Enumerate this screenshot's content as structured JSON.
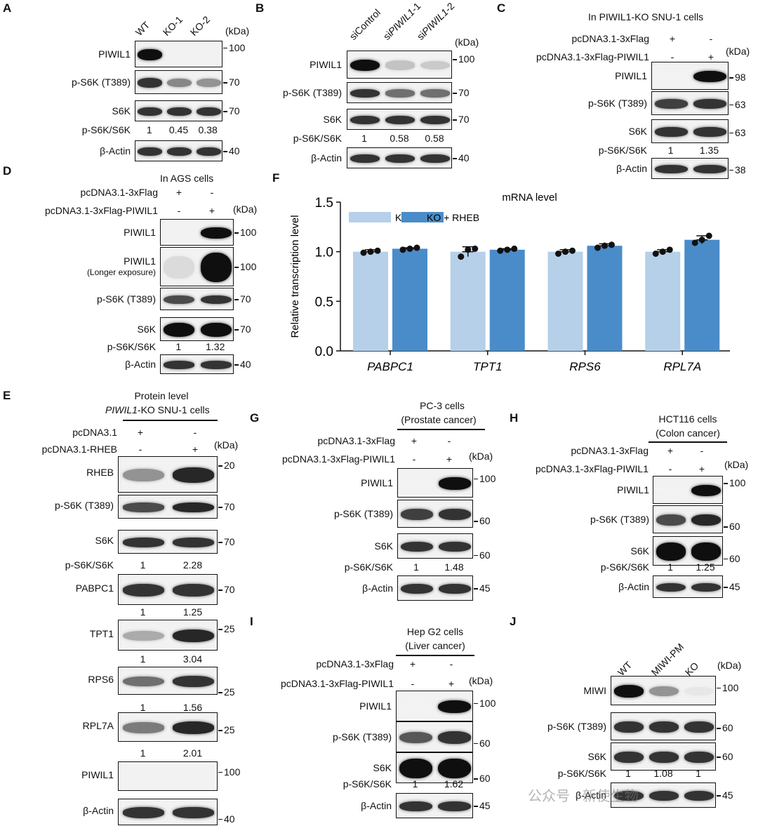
{
  "panels": {
    "A": {
      "label": "A",
      "lanes": [
        "WT",
        "KO-1",
        "KO-2"
      ],
      "kda": "(kDa)",
      "rows": [
        {
          "name": "PIWIL1",
          "marker": "100"
        },
        {
          "name": "p-S6K (T389)",
          "marker": "70"
        },
        {
          "name": "S6K",
          "marker": "70"
        },
        {
          "name": "β-Actin",
          "marker": "40"
        }
      ],
      "ratio_label": "p-S6K/S6K",
      "ratios": [
        "1",
        "0.45",
        "0.38"
      ]
    },
    "B": {
      "label": "B",
      "lanes": [
        "siControl",
        "siPIWIL1-1",
        "siPIWIL1-2"
      ],
      "kda": "(kDa)",
      "rows": [
        {
          "name": "PIWIL1",
          "marker": "100"
        },
        {
          "name": "p-S6K (T389)",
          "marker": "70"
        },
        {
          "name": "S6K",
          "marker": "70"
        },
        {
          "name": "β-Actin",
          "marker": "40"
        }
      ],
      "ratio_label": "p-S6K/S6K",
      "ratios": [
        "1",
        "0.58",
        "0.58"
      ]
    },
    "C": {
      "label": "C",
      "title": "In PIWIL1-KO SNU-1 cells",
      "conditions": [
        {
          "name": "pcDNA3.1-3xFlag",
          "signs": [
            "+",
            "-"
          ]
        },
        {
          "name": "pcDNA3.1-3xFlag-PIWIL1",
          "signs": [
            "-",
            "+"
          ]
        }
      ],
      "kda": "(kDa)",
      "rows": [
        {
          "name": "PIWIL1",
          "marker": "98"
        },
        {
          "name": "p-S6K (T389)",
          "marker": "63"
        },
        {
          "name": "S6K",
          "marker": "63"
        },
        {
          "name": "β-Actin",
          "marker": "38"
        }
      ],
      "ratio_label": "p-S6K/S6K",
      "ratios": [
        "1",
        "1.35"
      ]
    },
    "D": {
      "label": "D",
      "title": "In AGS cells",
      "conditions": [
        {
          "name": "pcDNA3.1-3xFlag",
          "signs": [
            "+",
            "-"
          ]
        },
        {
          "name": "pcDNA3.1-3xFlag-PIWIL1",
          "signs": [
            "-",
            "+"
          ]
        }
      ],
      "kda": "(kDa)",
      "rows": [
        {
          "name": "PIWIL1",
          "marker": "100"
        },
        {
          "name": "PIWIL1",
          "sub": "(Longer exposure)",
          "marker": "100"
        },
        {
          "name": "p-S6K (T389)",
          "marker": "70"
        },
        {
          "name": "S6K",
          "marker": "70"
        },
        {
          "name": "β-Actin",
          "marker": "40"
        }
      ],
      "ratio_label": "p-S6K/S6K",
      "ratios": [
        "1",
        "1.32"
      ]
    },
    "E": {
      "label": "E",
      "title1": "Protein level",
      "title2": "PIWIL1-KO SNU-1 cells",
      "conditions": [
        {
          "name": "pcDNA3.1",
          "signs": [
            "+",
            "-"
          ]
        },
        {
          "name": "pcDNA3.1-RHEB",
          "signs": [
            "-",
            "+"
          ]
        }
      ],
      "kda": "(kDa)",
      "rows": [
        {
          "name": "RHEB",
          "marker": "20"
        },
        {
          "name": "p-S6K (T389)",
          "marker": "70"
        },
        {
          "name": "S6K",
          "marker": "70"
        },
        {
          "name": "PABPC1",
          "marker": "70"
        },
        {
          "name": "TPT1",
          "marker": "25"
        },
        {
          "name": "RPS6",
          "marker": "25"
        },
        {
          "name": "RPL7A",
          "marker": "25"
        },
        {
          "name": "PIWIL1",
          "marker": "100"
        },
        {
          "name": "β-Actin",
          "marker": "40"
        }
      ],
      "ratio_label": "p-S6K/S6K",
      "ratios": [
        "1",
        "2.28"
      ],
      "quant": [
        [
          "1",
          "1.25"
        ],
        [
          "1",
          "3.04"
        ],
        [
          "1",
          "1.56"
        ],
        [
          "1",
          "2.01"
        ]
      ]
    },
    "F": {
      "label": "F"
    },
    "G": {
      "label": "G",
      "title1": "PC-3 cells",
      "title2": "(Prostate cancer)",
      "conditions": [
        {
          "name": "pcDNA3.1-3xFlag",
          "signs": [
            "+",
            "-"
          ]
        },
        {
          "name": "pcDNA3.1-3xFlag-PIWIL1",
          "signs": [
            "-",
            "+"
          ]
        }
      ],
      "kda": "(kDa)",
      "rows": [
        {
          "name": "PIWIL1",
          "marker": "100"
        },
        {
          "name": "p-S6K (T389)",
          "marker": "60"
        },
        {
          "name": "S6K",
          "marker": "60"
        },
        {
          "name": "β-Actin",
          "marker": "45"
        }
      ],
      "ratio_label": "p-S6K/S6K",
      "ratios": [
        "1",
        "1.48"
      ]
    },
    "H": {
      "label": "H",
      "title1": "HCT116 cells",
      "title2": "(Colon cancer)",
      "conditions": [
        {
          "name": "pcDNA3.1-3xFlag",
          "signs": [
            "+",
            "-"
          ]
        },
        {
          "name": "pcDNA3.1-3xFlag-PIWIL1",
          "signs": [
            "-",
            "+"
          ]
        }
      ],
      "kda": "(kDa)",
      "rows": [
        {
          "name": "PIWIL1",
          "marker": "100"
        },
        {
          "name": "p-S6K (T389)",
          "marker": "60"
        },
        {
          "name": "S6K",
          "marker": "60"
        },
        {
          "name": "β-Actin",
          "marker": "45"
        }
      ],
      "ratio_label": "p-S6K/S6K",
      "ratios": [
        "1",
        "1.25"
      ]
    },
    "I": {
      "label": "I",
      "title1": "Hep G2 cells",
      "title2": "(Liver cancer)",
      "conditions": [
        {
          "name": "pcDNA3.1-3xFlag",
          "signs": [
            "+",
            "-"
          ]
        },
        {
          "name": "pcDNA3.1-3xFlag-PIWIL1",
          "signs": [
            "-",
            "+"
          ]
        }
      ],
      "kda": "(kDa)",
      "rows": [
        {
          "name": "PIWIL1",
          "marker": "100"
        },
        {
          "name": "p-S6K (T389)",
          "marker": "60"
        },
        {
          "name": "S6K",
          "marker": "60"
        },
        {
          "name": "β-Actin",
          "marker": "45"
        }
      ],
      "ratio_label": "p-S6K/S6K",
      "ratios": [
        "1",
        "1.62"
      ]
    },
    "J": {
      "label": "J",
      "lanes": [
        "WT",
        "MIWI-PM",
        "KO"
      ],
      "kda": "(kDa)",
      "rows": [
        {
          "name": "MIWI",
          "marker": "100"
        },
        {
          "name": "p-S6K (T389)",
          "marker": "60"
        },
        {
          "name": "S6K",
          "marker": "60"
        },
        {
          "name": "β-Actin",
          "marker": "45"
        }
      ],
      "ratio_label": "p-S6K/S6K",
      "ratios": [
        "1",
        "1.08",
        "1"
      ]
    }
  },
  "watermark": "公众号 · 新使生物",
  "chart_data": {
    "type": "bar",
    "title": "mRNA level",
    "ylabel": "Relative transcription level",
    "ylim": [
      0,
      1.5
    ],
    "yticks": [
      "0.0",
      "0.5",
      "1.0",
      "1.5"
    ],
    "categories": [
      "PABPC1",
      "TPT1",
      "RPS6",
      "RPL7A"
    ],
    "legend_position": "top-left",
    "series": [
      {
        "name": "KO",
        "color": "#b5d0e8",
        "values": [
          1.0,
          1.0,
          1.0,
          1.0
        ],
        "errors": [
          0.02,
          0.05,
          0.02,
          0.02
        ],
        "points": [
          [
            0.99,
            1.0,
            1.01
          ],
          [
            0.95,
            1.02,
            1.03
          ],
          [
            0.98,
            1.0,
            1.01
          ],
          [
            0.98,
            1.0,
            1.02
          ]
        ]
      },
      {
        "name": "KO + RHEB",
        "color": "#4a8cc9",
        "values": [
          1.03,
          1.02,
          1.06,
          1.12
        ],
        "errors": [
          0.01,
          0.01,
          0.02,
          0.04
        ],
        "points": [
          [
            1.02,
            1.03,
            1.04
          ],
          [
            1.01,
            1.02,
            1.03
          ],
          [
            1.04,
            1.06,
            1.07
          ],
          [
            1.09,
            1.12,
            1.16
          ]
        ]
      }
    ]
  }
}
